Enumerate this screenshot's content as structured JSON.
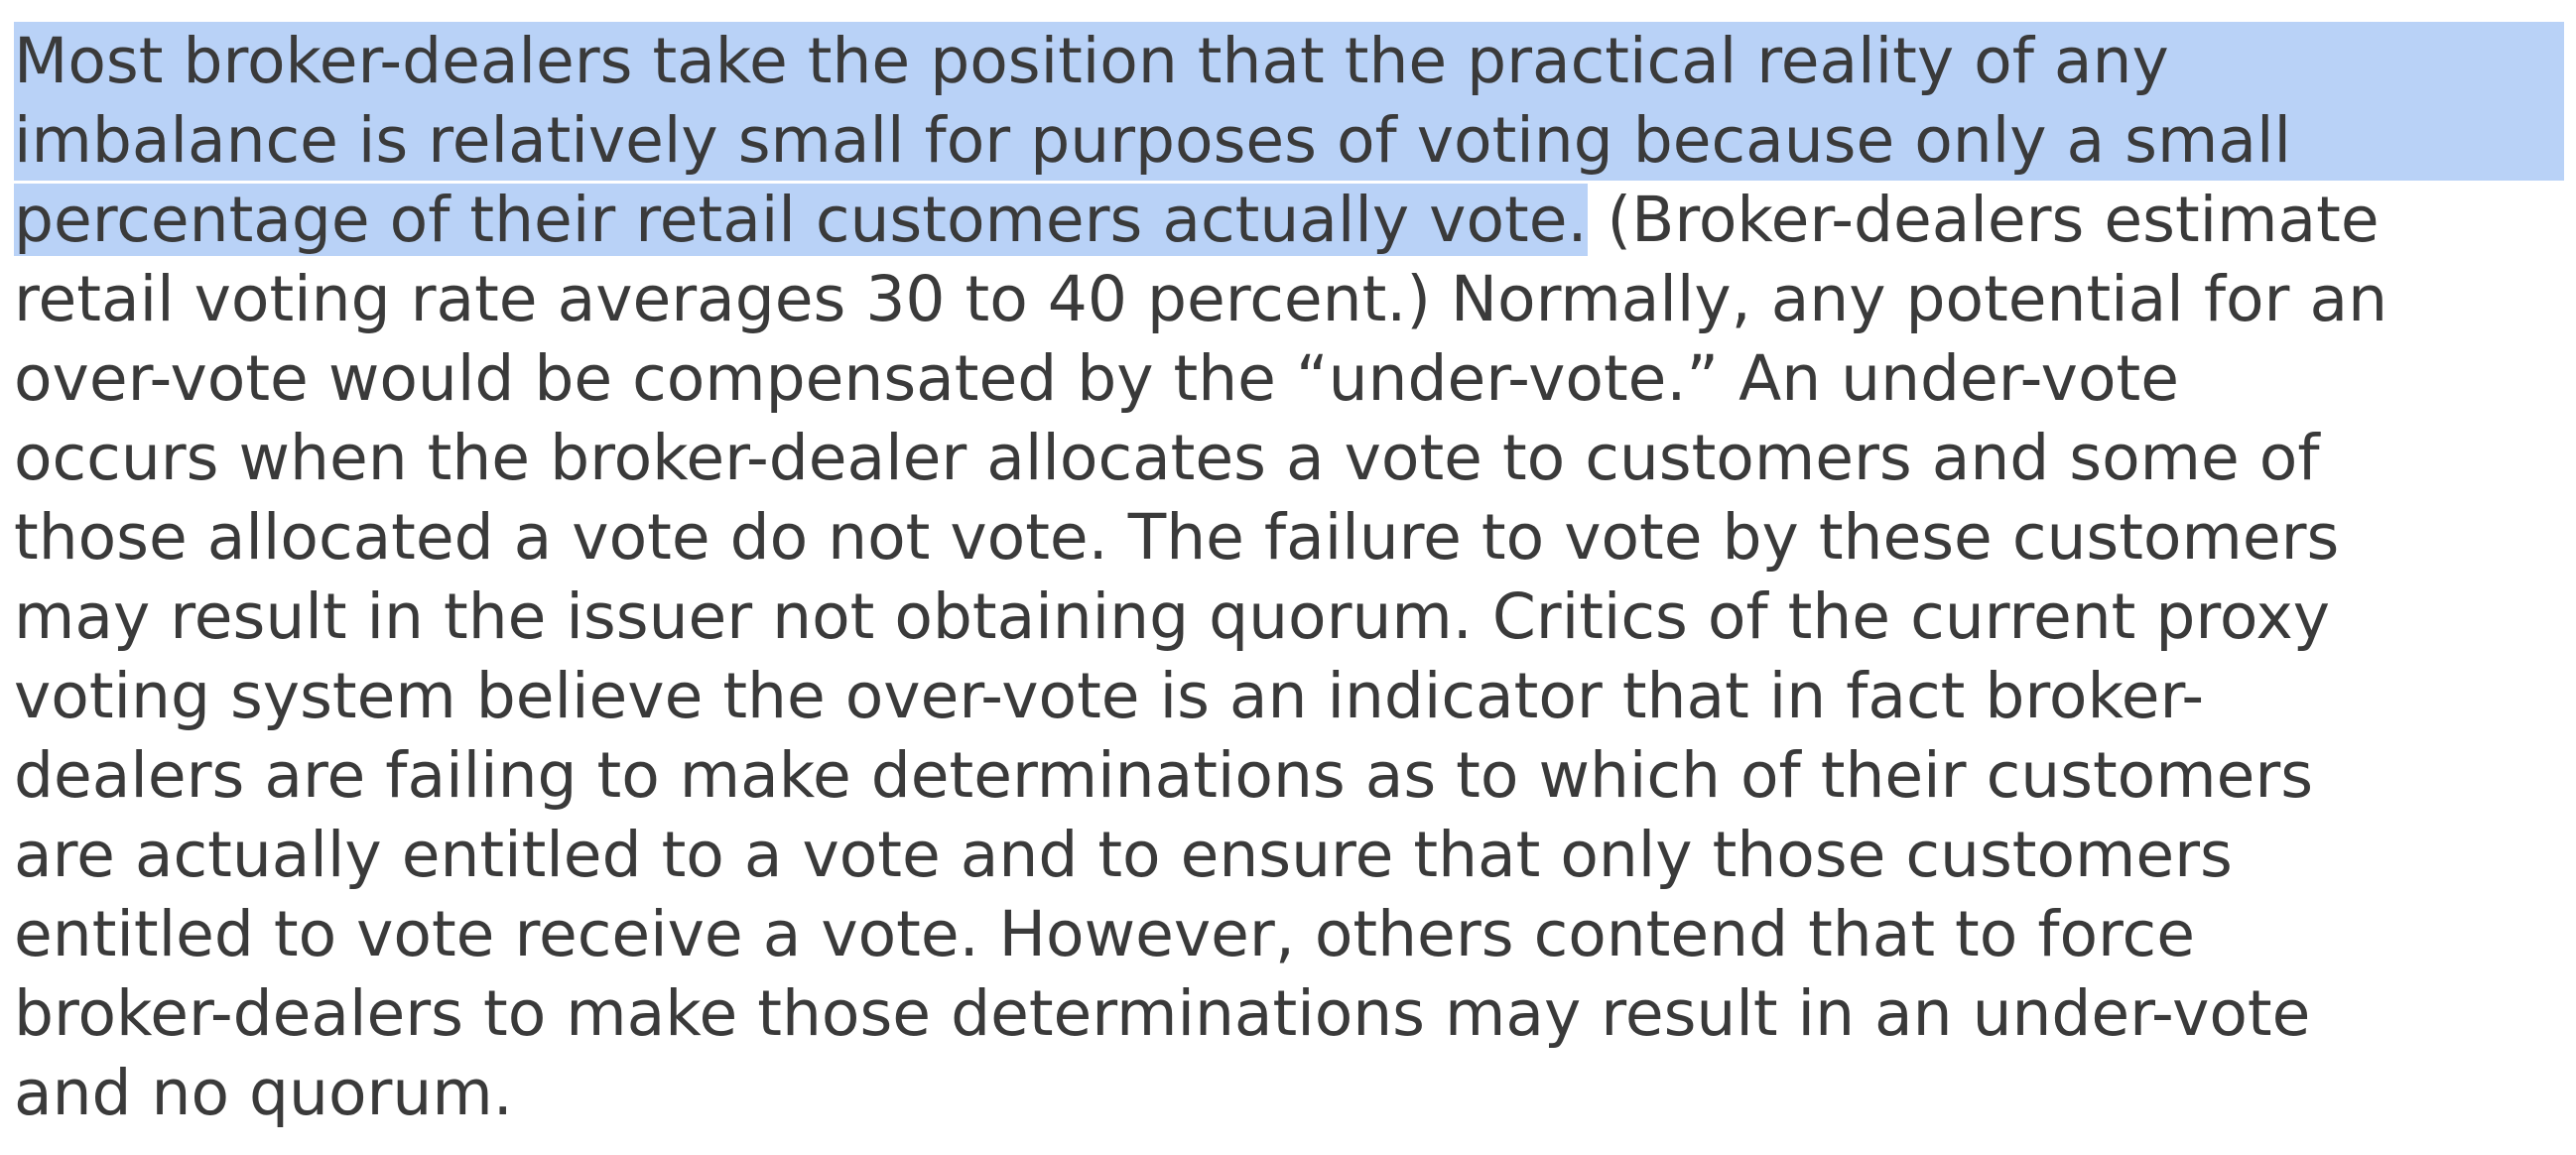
{
  "document": {
    "highlight_color": "#b9d2f7",
    "text_color": "#3a3a3a",
    "lines": [
      "Most broker-dealers take the position that the practical reality of any",
      "imbalance is relatively small for purposes of voting because only a small",
      "percentage of their retail customers actually vote.",
      " (Broker-dealers estimate",
      "retail voting rate averages 30 to 40 percent.) Normally, any potential for an",
      "over-vote would be compensated by the “under-vote.” An under-vote",
      "occurs when the broker-dealer allocates a vote to customers and some of",
      "those allocated a vote do not vote. The failure to vote by these customers",
      "may result in the issuer not obtaining quorum. Critics of the current proxy",
      "voting system believe the over-vote is an indicator that in fact broker-",
      "dealers are failing to make determinations as to which of their customers",
      "are actually entitled to a vote and to ensure that only those customers",
      "entitled to vote receive a vote. However, others contend that to force",
      "broker-dealers to make those determinations may result in an under-vote",
      "and no quorum."
    ]
  }
}
